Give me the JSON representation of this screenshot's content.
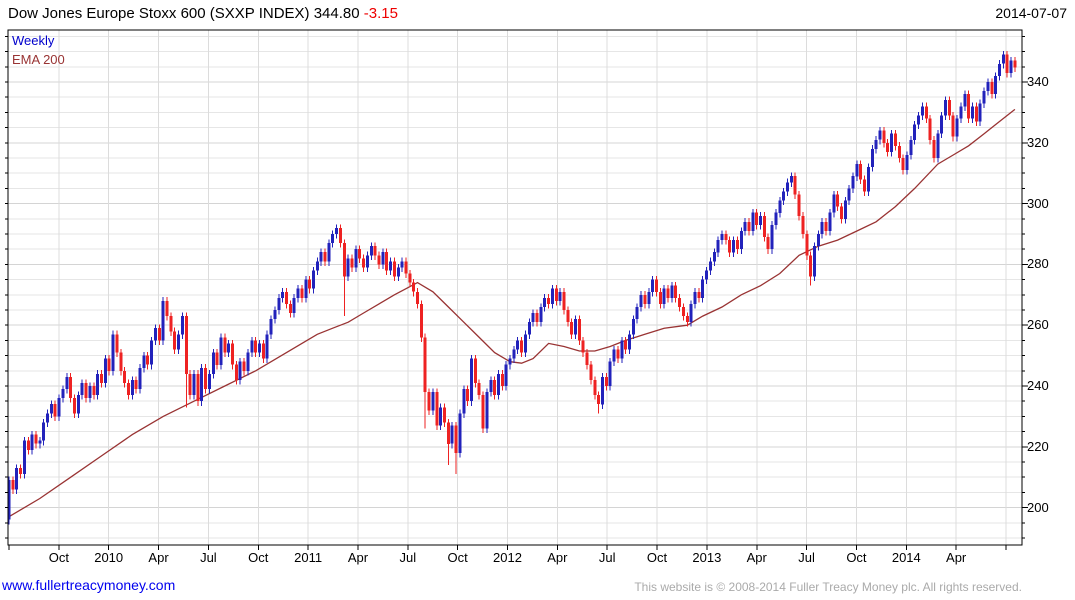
{
  "header": {
    "title": "Dow Jones Europe Stoxx 600 (SXXP INDEX) 344.80",
    "change": "-3.15",
    "date": "2014-07-07"
  },
  "legend": {
    "weekly": "Weekly",
    "ema": "EMA 200"
  },
  "footer": {
    "site_link": "www.fullertreacymoney.com",
    "copyright": "This website is © 2008-2014 Fuller Treacy Money plc. All rights reserved."
  },
  "colors": {
    "up_candle": "#2222bb",
    "down_candle": "#ee2222",
    "ema_line": "#993333",
    "grid_minor": "#e6e6e6",
    "grid_major": "#d4d4d4",
    "grid_vertical": "#dcdcdc",
    "axis": "#000000",
    "title_text": "#000000",
    "change_text": "#ee0000",
    "link_blue": "#0000ee",
    "copyright_gray": "#aaaaaa",
    "legend_weekly": "#0000cc",
    "legend_ema": "#993333"
  },
  "chart_data": {
    "type": "candlestick",
    "timeframe": "Weekly",
    "overlay": "EMA 200",
    "instrument": "Dow Jones Europe Stoxx 600 (SXXP INDEX)",
    "last_price": 344.8,
    "change": -3.15,
    "as_of_date": "2014-07-07",
    "grid": true,
    "y_ticks": [
      340,
      320,
      300,
      280,
      260,
      240,
      220,
      200
    ],
    "y_minor_step": 5,
    "y_value_range_visible": [
      188,
      357
    ],
    "x_labels": [
      "Oct",
      "2010",
      "Apr",
      "Jul",
      "Oct",
      "2011",
      "Apr",
      "Jul",
      "Oct",
      "2012",
      "Apr",
      "Jul",
      "Oct",
      "2013",
      "Apr",
      "Jul",
      "Oct",
      "2014",
      "Apr"
    ],
    "x_label_interval_weeks": 13,
    "first_open": 196,
    "weekly_closes": [
      209,
      206,
      213,
      211,
      222,
      219,
      224,
      221,
      222,
      228,
      231,
      234,
      230,
      236,
      239,
      243,
      236,
      231,
      237,
      241,
      236,
      240,
      237,
      244,
      241,
      249,
      245,
      257,
      251,
      245,
      241,
      237,
      242,
      239,
      246,
      250,
      247,
      255,
      259,
      255,
      268,
      263,
      258,
      252,
      257,
      263,
      244,
      237,
      244,
      235,
      246,
      239,
      244,
      251,
      247,
      256,
      251,
      254,
      247,
      242,
      248,
      245,
      251,
      255,
      251,
      254,
      249,
      257,
      262,
      265,
      269,
      271,
      267,
      264,
      269,
      272,
      269,
      275,
      272,
      278,
      281,
      284,
      281,
      287,
      290,
      292,
      287,
      276,
      282,
      279,
      285,
      282,
      279,
      283,
      286,
      283,
      280,
      284,
      278,
      281,
      276,
      279,
      281,
      277,
      274,
      271,
      267,
      256,
      238,
      232,
      238,
      227,
      233,
      228,
      221,
      227,
      218,
      231,
      239,
      235,
      249,
      241,
      237,
      226,
      238,
      242,
      237,
      244,
      240,
      247,
      249,
      252,
      255,
      251,
      257,
      261,
      264,
      261,
      266,
      269,
      267,
      272,
      268,
      271,
      265,
      261,
      257,
      262,
      255,
      251,
      247,
      242,
      237,
      234,
      243,
      240,
      248,
      252,
      249,
      255,
      252,
      257,
      262,
      266,
      270,
      267,
      271,
      275,
      271,
      267,
      272,
      269,
      273,
      269,
      266,
      263,
      261,
      267,
      271,
      269,
      275,
      278,
      281,
      284,
      288,
      290,
      288,
      284,
      288,
      285,
      291,
      294,
      291,
      297,
      293,
      296,
      289,
      285,
      293,
      297,
      301,
      304,
      307,
      309,
      303,
      296,
      290,
      283,
      276,
      286,
      290,
      294,
      291,
      297,
      303,
      299,
      295,
      301,
      305,
      309,
      313,
      308,
      304,
      312,
      318,
      321,
      324,
      320,
      317,
      323,
      319,
      315,
      311,
      316,
      321,
      326,
      329,
      332,
      328,
      321,
      315,
      323,
      329,
      334,
      329,
      322,
      328,
      332,
      336,
      328,
      332,
      327,
      333,
      337,
      340,
      336,
      342,
      346,
      349,
      343,
      347,
      344.8
    ],
    "wick_low_overrides": {
      "46": 233,
      "87": 263,
      "108": 226,
      "114": 214,
      "116": 211,
      "153": 231,
      "208": 273
    },
    "ema_points": [
      [
        0,
        197
      ],
      [
        8,
        203
      ],
      [
        16,
        210
      ],
      [
        24,
        217
      ],
      [
        32,
        224
      ],
      [
        40,
        230
      ],
      [
        48,
        235
      ],
      [
        56,
        240
      ],
      [
        64,
        245
      ],
      [
        72,
        251
      ],
      [
        76,
        254
      ],
      [
        80,
        257
      ],
      [
        84,
        259
      ],
      [
        88,
        261
      ],
      [
        92,
        264
      ],
      [
        96,
        267
      ],
      [
        100,
        270
      ],
      [
        103,
        272
      ],
      [
        106,
        274
      ],
      [
        110,
        271
      ],
      [
        114,
        266
      ],
      [
        118,
        261
      ],
      [
        122,
        256
      ],
      [
        126,
        251
      ],
      [
        130,
        248
      ],
      [
        133,
        247.5
      ],
      [
        136,
        249
      ],
      [
        140,
        254
      ],
      [
        144,
        253
      ],
      [
        148,
        251.5
      ],
      [
        152,
        251.5
      ],
      [
        156,
        253
      ],
      [
        160,
        255
      ],
      [
        165,
        257
      ],
      [
        170,
        259
      ],
      [
        176,
        260
      ],
      [
        180,
        263
      ],
      [
        185,
        266
      ],
      [
        190,
        270
      ],
      [
        195,
        273
      ],
      [
        200,
        277
      ],
      [
        205,
        283
      ],
      [
        210,
        286
      ],
      [
        215,
        288
      ],
      [
        220,
        291
      ],
      [
        225,
        294
      ],
      [
        230,
        299
      ],
      [
        235,
        305
      ],
      [
        241,
        313
      ],
      [
        245,
        316
      ],
      [
        249,
        319
      ],
      [
        253,
        323
      ],
      [
        257,
        327
      ],
      [
        261,
        331
      ]
    ]
  }
}
